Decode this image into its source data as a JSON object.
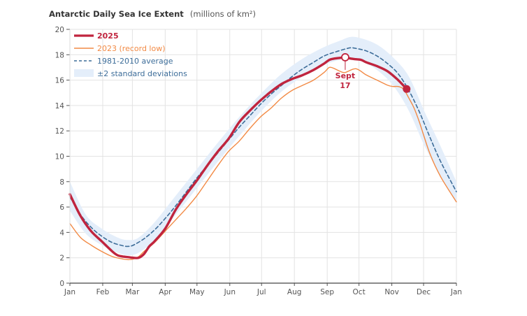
{
  "chart_data": {
    "type": "line",
    "title": "Antarctic Daily Sea Ice Extent",
    "title_units": "(millions of km²)",
    "xlabel": "",
    "ylabel": "",
    "x_unit": "day of year",
    "xlim": [
      0,
      365
    ],
    "ylim": [
      0,
      20
    ],
    "grid": true,
    "legend_position": "top-left",
    "y_ticks": [
      0,
      2,
      4,
      6,
      8,
      10,
      12,
      14,
      16,
      18,
      20
    ],
    "x_ticks": [
      {
        "label": "Jan",
        "day": 0
      },
      {
        "label": "Feb",
        "day": 31
      },
      {
        "label": "Mar",
        "day": 59
      },
      {
        "label": "Apr",
        "day": 90
      },
      {
        "label": "May",
        "day": 120
      },
      {
        "label": "Jun",
        "day": 151
      },
      {
        "label": "Jul",
        "day": 181
      },
      {
        "label": "Aug",
        "day": 212
      },
      {
        "label": "Sep",
        "day": 243
      },
      {
        "label": "Oct",
        "day": 273
      },
      {
        "label": "Nov",
        "day": 304
      },
      {
        "label": "Dec",
        "day": 334
      },
      {
        "label": "Jan",
        "day": 365
      }
    ],
    "series": [
      {
        "name": "±2 standard deviations",
        "kind": "band",
        "color": "#e4eefa",
        "x": [
          0,
          15,
          30,
          45,
          55,
          65,
          80,
          100,
          120,
          140,
          160,
          180,
          200,
          220,
          240,
          255,
          265,
          275,
          290,
          305,
          320,
          335,
          350,
          365
        ],
        "lower": [
          5.7,
          3.9,
          3.0,
          2.4,
          2.2,
          2.4,
          3.4,
          5.4,
          7.5,
          9.6,
          11.6,
          13.5,
          15.1,
          16.3,
          17.2,
          17.6,
          17.7,
          17.5,
          16.8,
          15.6,
          13.6,
          10.8,
          8.5,
          6.3
        ],
        "upper": [
          8.0,
          5.4,
          4.3,
          3.6,
          3.4,
          3.6,
          4.8,
          6.9,
          9.0,
          11.1,
          13.1,
          14.9,
          16.5,
          17.7,
          18.6,
          19.1,
          19.4,
          19.3,
          18.8,
          17.8,
          16.3,
          13.5,
          10.8,
          8.0
        ]
      },
      {
        "name": "1981-2010 average",
        "kind": "line",
        "style": "dashed",
        "color": "#3d6d99",
        "x": [
          0,
          10,
          20,
          30,
          40,
          50,
          55,
          60,
          70,
          80,
          90,
          100,
          110,
          120,
          130,
          140,
          150,
          160,
          170,
          180,
          190,
          200,
          210,
          220,
          230,
          240,
          250,
          260,
          265,
          270,
          280,
          290,
          300,
          310,
          320,
          330,
          340,
          350,
          365
        ],
        "y": [
          6.8,
          5.4,
          4.4,
          3.7,
          3.2,
          2.95,
          2.9,
          3.0,
          3.5,
          4.2,
          5.1,
          6.1,
          7.2,
          8.3,
          9.3,
          10.3,
          11.3,
          12.3,
          13.2,
          14.1,
          14.9,
          15.6,
          16.3,
          16.9,
          17.4,
          17.9,
          18.2,
          18.45,
          18.55,
          18.5,
          18.3,
          17.9,
          17.3,
          16.5,
          15.2,
          13.5,
          11.5,
          9.6,
          7.2
        ]
      },
      {
        "name": "2023 (record low)",
        "kind": "line",
        "color": "#f28a45",
        "x": [
          0,
          10,
          20,
          30,
          40,
          50,
          55,
          60,
          65,
          70,
          80,
          90,
          100,
          110,
          120,
          130,
          140,
          150,
          160,
          170,
          180,
          190,
          200,
          210,
          220,
          230,
          240,
          245,
          250,
          255,
          260,
          270,
          280,
          290,
          300,
          305,
          310,
          315,
          320,
          325,
          330,
          340,
          350,
          365
        ],
        "y": [
          4.7,
          3.6,
          3.0,
          2.5,
          2.1,
          1.9,
          1.85,
          1.9,
          2.1,
          2.5,
          3.2,
          4.1,
          5.0,
          5.9,
          6.9,
          8.1,
          9.3,
          10.4,
          11.2,
          12.2,
          13.1,
          13.8,
          14.6,
          15.2,
          15.6,
          16.0,
          16.6,
          17.0,
          16.9,
          16.7,
          16.6,
          16.9,
          16.4,
          16.0,
          15.6,
          15.5,
          15.5,
          15.3,
          14.6,
          13.8,
          12.7,
          10.2,
          8.4,
          6.4
        ]
      },
      {
        "name": "2025",
        "kind": "line",
        "color": "#c0243e",
        "x": [
          0,
          10,
          20,
          30,
          40,
          45,
          50,
          55,
          60,
          65,
          70,
          75,
          80,
          90,
          100,
          110,
          120,
          130,
          140,
          150,
          160,
          170,
          180,
          190,
          200,
          210,
          220,
          230,
          240,
          245,
          250,
          255,
          260,
          265,
          270,
          275,
          280,
          290,
          300,
          310,
          318
        ],
        "y": [
          7.0,
          5.3,
          4.1,
          3.3,
          2.5,
          2.2,
          2.1,
          2.05,
          2.0,
          2.0,
          2.3,
          2.9,
          3.3,
          4.3,
          5.8,
          7.0,
          8.1,
          9.3,
          10.4,
          11.4,
          12.7,
          13.6,
          14.4,
          15.1,
          15.7,
          16.1,
          16.4,
          16.8,
          17.3,
          17.6,
          17.7,
          17.75,
          17.8,
          17.7,
          17.65,
          17.6,
          17.4,
          17.1,
          16.7,
          16.0,
          15.3
        ]
      }
    ],
    "annotations": [
      {
        "text_line1": "Sept",
        "text_line2": "17",
        "series": "2025",
        "day": 260,
        "value": 17.8,
        "marker": "open-circle"
      },
      {
        "series": "2025",
        "day": 318,
        "value": 15.3,
        "marker": "filled-circle",
        "note": "latest value"
      }
    ]
  }
}
